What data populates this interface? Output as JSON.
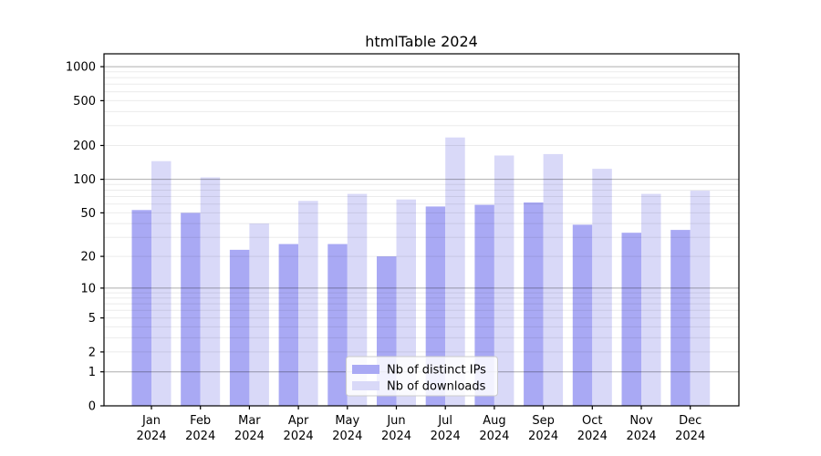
{
  "chart_data": {
    "type": "bar",
    "title": "htmlTable 2024",
    "categories": [
      "Jan",
      "Feb",
      "Mar",
      "Apr",
      "May",
      "Jun",
      "Jul",
      "Aug",
      "Sep",
      "Oct",
      "Nov",
      "Dec"
    ],
    "year_label": "2024",
    "series": [
      {
        "name": "Nb of distinct IPs",
        "color": "#a9a9f4",
        "values": [
          53,
          50,
          23,
          26,
          26,
          20,
          57,
          59,
          62,
          39,
          33,
          35
        ]
      },
      {
        "name": "Nb of downloads",
        "color": "#d9d9f8",
        "values": [
          145,
          104,
          40,
          64,
          74,
          66,
          236,
          163,
          168,
          124,
          74,
          79
        ]
      }
    ],
    "y_axis": {
      "scale": "log1p",
      "tick_labels": [
        0,
        1,
        2,
        5,
        10,
        20,
        50,
        100,
        200,
        500,
        1000
      ],
      "major_gridlines": [
        1,
        10,
        100,
        1000
      ],
      "ylim": [
        0,
        1300
      ]
    },
    "x_axis": {
      "tick_label_lines": 2
    },
    "legend": {
      "position": "bottom-center",
      "frame": true
    },
    "grid": true,
    "colors": {
      "major_grid": "#b0b0b0",
      "minor_grid": "#e8e8e8",
      "spine": "#000000",
      "legend_border": "#cccccc",
      "legend_bg": "#ffffff"
    }
  }
}
